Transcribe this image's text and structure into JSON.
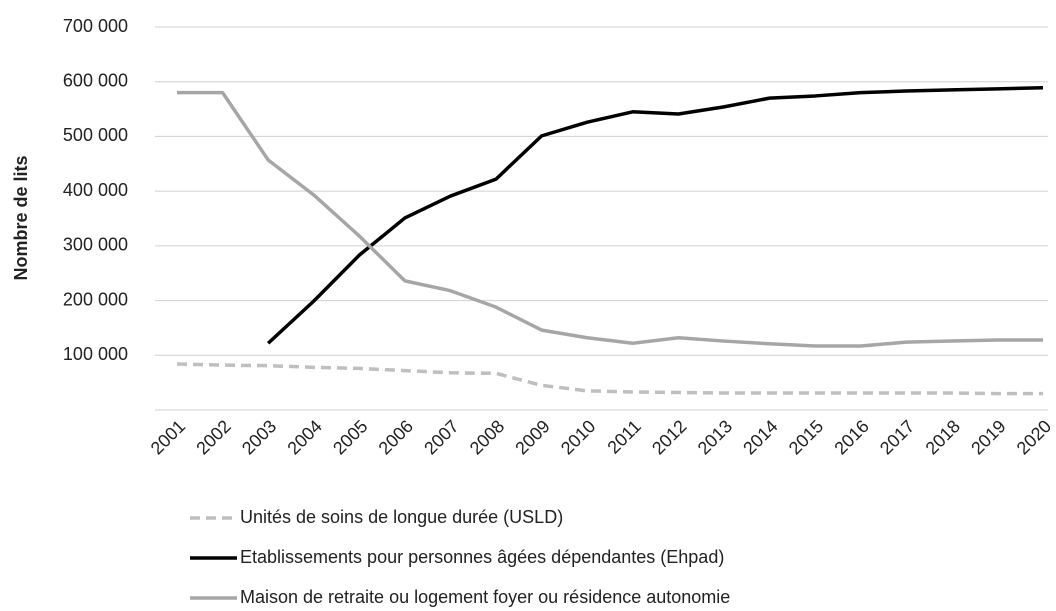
{
  "chart_data": {
    "type": "line",
    "y_label": "Nombre de lits",
    "categories": [
      "2001",
      "2002",
      "2003",
      "2004",
      "2005",
      "2006",
      "2007",
      "2008",
      "2009",
      "2010",
      "2011",
      "2012",
      "2013",
      "2014",
      "2015",
      "2016",
      "2017",
      "2018",
      "2019",
      "2020"
    ],
    "series": [
      {
        "name": "Unités de soins de longue durée (USLD)",
        "color": "#bfbfbf",
        "line_style": "dashed",
        "values": [
          84000,
          82000,
          81000,
          78000,
          76000,
          72000,
          68000,
          67000,
          45000,
          35000,
          33000,
          32000,
          31000,
          31000,
          31000,
          31000,
          31000,
          31000,
          30000,
          30000
        ]
      },
      {
        "name": "Etablissements pour personnes âgées dépendantes (Ehpad)",
        "color": "#000000",
        "line_style": "solid",
        "values": [
          null,
          null,
          122000,
          199000,
          283000,
          351000,
          391000,
          422000,
          501000,
          526000,
          545000,
          541000,
          554000,
          570000,
          574000,
          580000,
          583000,
          585000,
          587000,
          589000
        ]
      },
      {
        "name": "Maison de retraite ou logement foyer ou résidence autonomie",
        "color": "#a6a6a6",
        "line_style": "solid",
        "values": [
          580000,
          580000,
          457000,
          393000,
          318000,
          236000,
          218000,
          188000,
          146000,
          132000,
          122000,
          132000,
          126000,
          121000,
          117000,
          117000,
          124000,
          126000,
          128000,
          128000
        ]
      }
    ],
    "ylim": [
      0,
      700000
    ],
    "yticks": [
      {
        "value": 100000,
        "label": "100 000"
      },
      {
        "value": 200000,
        "label": "200 000"
      },
      {
        "value": 300000,
        "label": "300 000"
      },
      {
        "value": 400000,
        "label": "400 000"
      },
      {
        "value": 500000,
        "label": "500 000"
      },
      {
        "value": 600000,
        "label": "600 000"
      },
      {
        "value": 700000,
        "label": "700 000"
      }
    ],
    "grid": true,
    "legend": "bottom"
  }
}
